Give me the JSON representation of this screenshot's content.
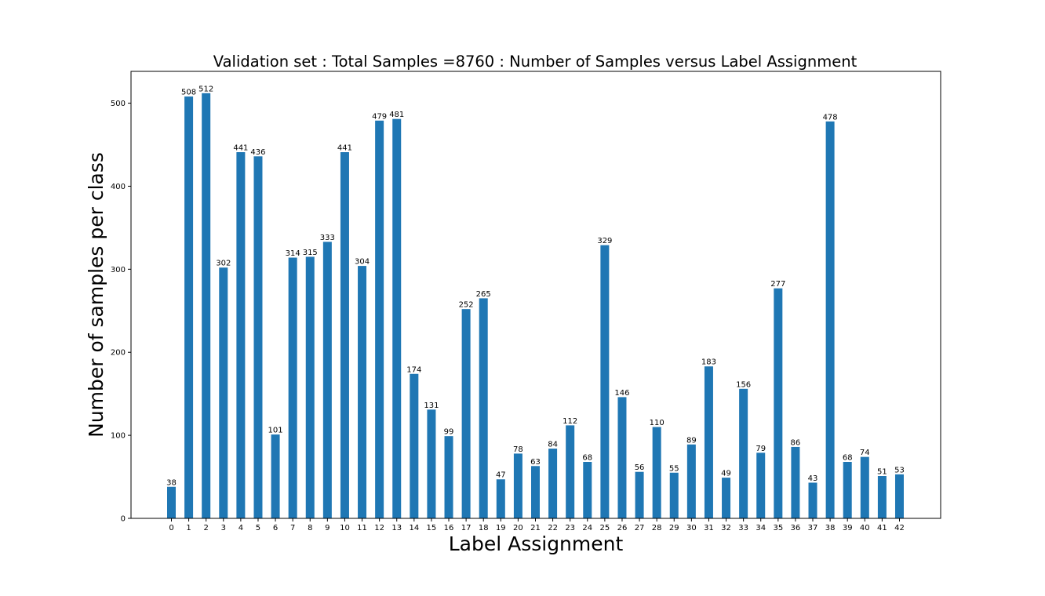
{
  "chart_data": {
    "type": "bar",
    "title": "Validation set : Total Samples =8760  : Number of Samples versus Label Assignment",
    "xlabel": "Label Assignment",
    "ylabel": "Number of samples per class",
    "categories": [
      "0",
      "1",
      "2",
      "3",
      "4",
      "5",
      "6",
      "7",
      "8",
      "9",
      "10",
      "11",
      "12",
      "13",
      "14",
      "15",
      "16",
      "17",
      "18",
      "19",
      "20",
      "21",
      "22",
      "23",
      "24",
      "25",
      "26",
      "27",
      "28",
      "29",
      "30",
      "31",
      "32",
      "33",
      "34",
      "35",
      "36",
      "37",
      "38",
      "39",
      "40",
      "41",
      "42"
    ],
    "values": [
      38,
      508,
      512,
      302,
      441,
      436,
      101,
      314,
      315,
      333,
      441,
      304,
      479,
      481,
      174,
      131,
      99,
      252,
      265,
      47,
      78,
      63,
      84,
      112,
      68,
      329,
      146,
      56,
      110,
      55,
      89,
      183,
      49,
      156,
      79,
      277,
      86,
      43,
      478,
      68,
      74,
      51,
      53
    ],
    "ylim": [
      0,
      538.3
    ],
    "yticks": [
      0,
      100,
      200,
      300,
      400,
      500
    ],
    "bar_color": "#1f77b4",
    "grid": false,
    "legend": false
  }
}
